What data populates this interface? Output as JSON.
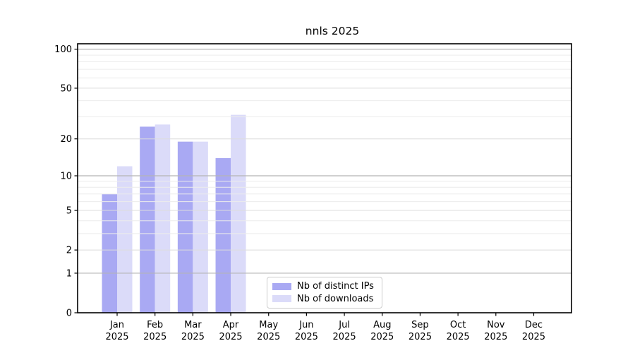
{
  "chart_data": {
    "type": "bar",
    "title": "nnls 2025",
    "yscale": "log(1+x)",
    "categories": [
      "Jan",
      "Feb",
      "Mar",
      "Apr",
      "May",
      "Jun",
      "Jul",
      "Aug",
      "Sep",
      "Oct",
      "Nov",
      "Dec"
    ],
    "year": "2025",
    "series": [
      {
        "name": "Nb of distinct IPs",
        "color": "#a9a9f3",
        "values": [
          7,
          25,
          19,
          14,
          0,
          0,
          0,
          0,
          0,
          0,
          0,
          0
        ]
      },
      {
        "name": "Nb of downloads",
        "color": "#dbdbf9",
        "values": [
          12,
          26,
          19,
          31,
          0,
          0,
          0,
          0,
          0,
          0,
          0,
          0
        ]
      }
    ],
    "yticks": [
      0,
      1,
      2,
      5,
      10,
      20,
      50,
      100
    ],
    "ylim": [
      0,
      110
    ],
    "gridlines": {
      "major": [
        1,
        10,
        100
      ],
      "labeled_minor": [
        2,
        5,
        20,
        50
      ],
      "minor": [
        3,
        4,
        6,
        7,
        8,
        9,
        30,
        40,
        60,
        70,
        80,
        90
      ]
    },
    "grid_colors": {
      "major": "#b5b5b5",
      "labeled_minor": "#dcdcdc",
      "minor": "#ececec"
    },
    "legend_position": "lower center",
    "axes_box": true
  }
}
